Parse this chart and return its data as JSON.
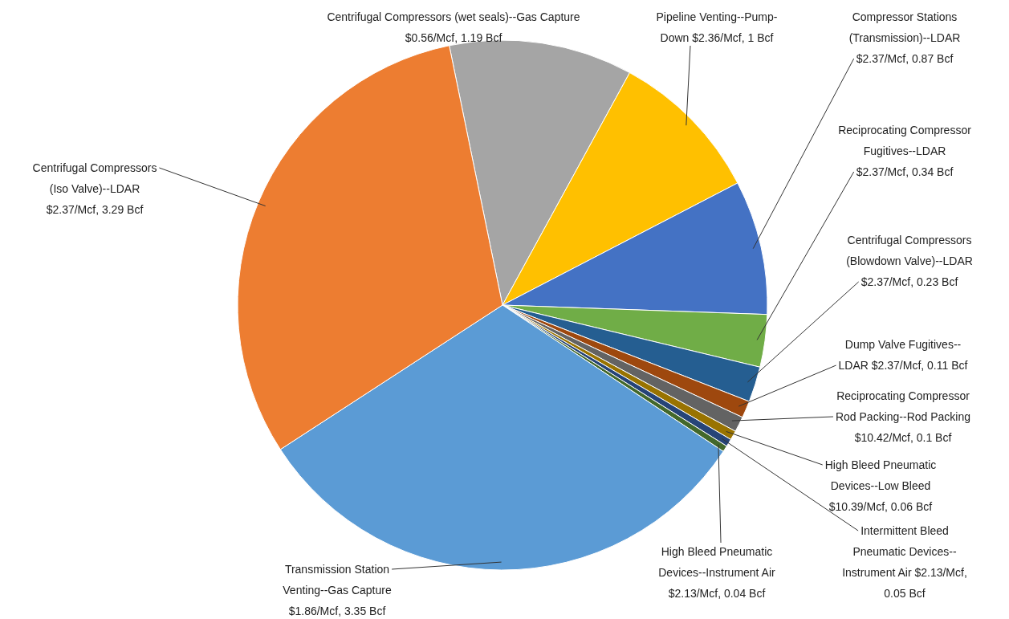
{
  "chart_data": {
    "type": "pie",
    "categories": [
      "Centrifugal Compressors (wet seals)--Gas Capture",
      "Pipeline Venting--Pump-Down",
      "Compressor Stations (Transmission)--LDAR",
      "Reciprocating Compressor Fugitives--LDAR",
      "Centrifugal Compressors (Blowdown Valve)--LDAR",
      "Dump Valve Fugitives--LDAR",
      "Reciprocating Compressor Rod Packing--Rod Packing",
      "High Bleed Pneumatic Devices--Low Bleed",
      "Intermittent Bleed Pneumatic Devices--Instrument Air",
      "High Bleed Pneumatic Devices--Instrument Air",
      "Transmission Station Venting--Gas Capture",
      "Centrifugal Compressors (Iso Valve)--LDAR"
    ],
    "values": [
      1.19,
      1,
      0.87,
      0.34,
      0.23,
      0.11,
      0.1,
      0.06,
      0.05,
      0.04,
      3.35,
      3.29
    ],
    "colors": [
      "#a5a5a5",
      "#ffc000",
      "#4472c4",
      "#70ad47",
      "#255e91",
      "#9e480e",
      "#636363",
      "#997300",
      "#264478",
      "#43682b",
      "#5b9bd5",
      "#ed7d31"
    ],
    "value_labels": [
      "$0.56/Mcf, 1.19 Bcf",
      "$2.36/Mcf, 1 Bcf",
      "$2.37/Mcf, 0.87 Bcf",
      "$2.37/Mcf, 0.34 Bcf",
      "$2.37/Mcf, 0.23 Bcf",
      "$2.37/Mcf, 0.11 Bcf",
      "$10.42/Mcf, 0.1 Bcf",
      "$10.39/Mcf, 0.06 Bcf",
      "$2.13/Mcf, 0.05 Bcf",
      "$2.13/Mcf, 0.04 Bcf",
      "$1.86/Mcf, 3.35 Bcf",
      "$2.37/Mcf, 3.29 Bcf"
    ]
  }
}
